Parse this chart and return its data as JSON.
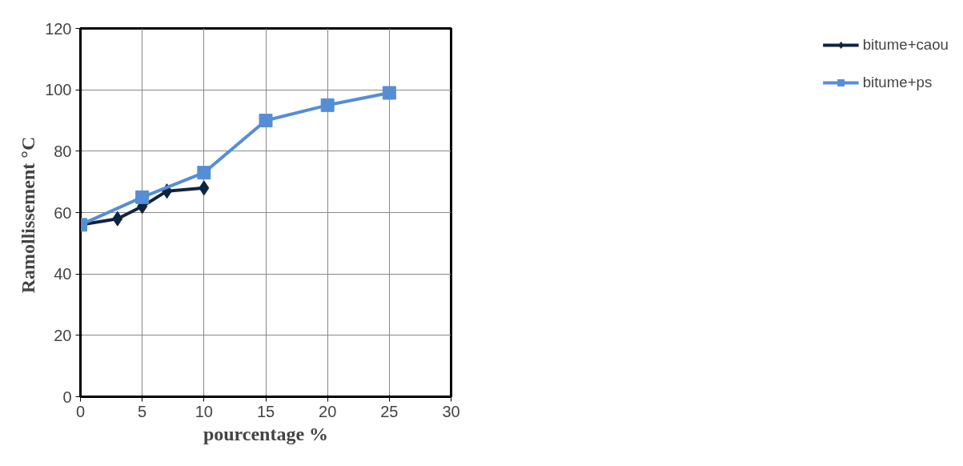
{
  "chart_data": {
    "type": "line",
    "xlabel": "pourcentage %",
    "ylabel": "Ramollissement  °C",
    "xlim": [
      0,
      30
    ],
    "xticks": [
      0,
      5,
      10,
      15,
      20,
      25,
      30
    ],
    "ylim": [
      0,
      120
    ],
    "yticks": [
      0,
      20,
      40,
      60,
      80,
      100,
      120
    ],
    "grid": true,
    "legend": "right",
    "series": [
      {
        "name": "bitume+caou",
        "color": "#10243f",
        "marker": "diamond",
        "x": [
          0,
          3,
          5,
          7,
          10
        ],
        "values": [
          56,
          58,
          62,
          67,
          68
        ]
      },
      {
        "name": "bitume+ps",
        "color": "#558ed5",
        "marker": "square",
        "x": [
          0,
          5,
          10,
          15,
          20,
          25
        ],
        "values": [
          56,
          65,
          73,
          90,
          95,
          99
        ]
      }
    ]
  }
}
